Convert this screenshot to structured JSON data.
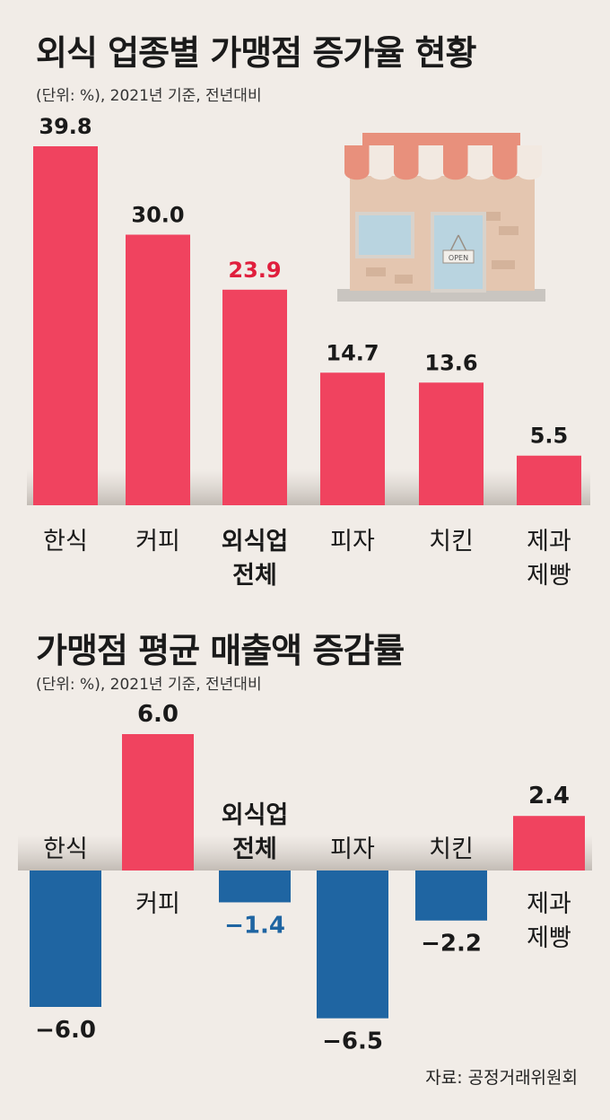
{
  "chart_data": [
    {
      "type": "bar",
      "title": "외식 업종별 가맹점 증가율 현황",
      "unit_note": "(단위: %), 2021년 기준, 전년대비",
      "categories": [
        "한식",
        "커피",
        "외식업 전체",
        "피자",
        "치킨",
        "제과 제빵"
      ],
      "category_lines": [
        [
          "한식"
        ],
        [
          "커피"
        ],
        [
          "외식업",
          "전체"
        ],
        [
          "피자"
        ],
        [
          "치킨"
        ],
        [
          "제과",
          "제빵"
        ]
      ],
      "values": [
        39.8,
        30.0,
        23.9,
        14.7,
        13.6,
        5.5
      ],
      "value_labels": [
        "39.8",
        "30.0",
        "23.9",
        "14.7",
        "13.6",
        "5.5"
      ],
      "highlight_index": 2,
      "ylim": [
        0,
        42
      ]
    },
    {
      "type": "bar",
      "title": "가맹점 평균 매출액 증감률",
      "unit_note": "(단위: %), 2021년 기준, 전년대비",
      "categories": [
        "한식",
        "커피",
        "외식업 전체",
        "피자",
        "치킨",
        "제과 제빵"
      ],
      "category_lines": [
        [
          "한식"
        ],
        [
          "커피"
        ],
        [
          "외식업",
          "전체"
        ],
        [
          "피자"
        ],
        [
          "치킨"
        ],
        [
          "제과",
          "제빵"
        ]
      ],
      "values": [
        -6.0,
        6.0,
        -1.4,
        -6.5,
        -2.2,
        2.4
      ],
      "value_labels": [
        "−6.0",
        "6.0",
        "−1.4",
        "−6.5",
        "−2.2",
        "2.4"
      ],
      "highlight_index": 2,
      "ylim": [
        -7,
        7
      ]
    }
  ],
  "illustration": {
    "sign_text": "OPEN"
  },
  "colors": {
    "positive": "#f0435f",
    "negative": "#1f65a2",
    "highlight_positive": "#e01f3d",
    "highlight_negative": "#1f65a2",
    "background": "#f1ece7"
  },
  "source": "자료: 공정거래위원회"
}
